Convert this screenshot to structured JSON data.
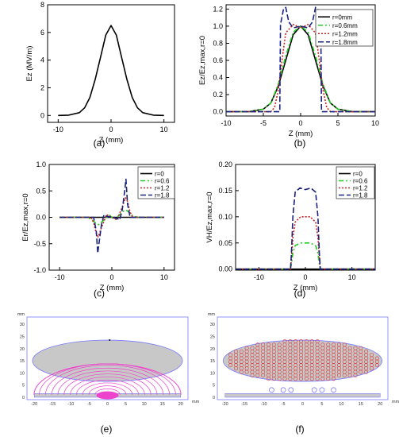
{
  "chart_data": [
    {
      "panel": "(a)",
      "type": "line",
      "xlabel": "Z (mm)",
      "ylabel": "Ez (MV/m)",
      "xlim": [
        -12,
        12
      ],
      "ylim": [
        -0.5,
        8
      ],
      "xticks": [
        -10,
        0,
        10
      ],
      "yticks": [
        0,
        2,
        4,
        6,
        8
      ],
      "grid": false,
      "series": [
        {
          "color": "#000000",
          "dash": "solid",
          "x": [
            -10,
            -8,
            -6,
            -5,
            -4,
            -3,
            -2,
            -1,
            0,
            1,
            2,
            3,
            4,
            5,
            6,
            8,
            10
          ],
          "y": [
            0,
            0.02,
            0.2,
            0.55,
            1.3,
            2.6,
            4.2,
            5.8,
            6.5,
            5.8,
            4.2,
            2.6,
            1.3,
            0.55,
            0.2,
            0.02,
            0
          ]
        }
      ]
    },
    {
      "panel": "(b)",
      "type": "line",
      "xlabel": "Z (mm)",
      "ylabel": "Ez/Ez,max,r=0",
      "xlim": [
        -10,
        10
      ],
      "ylim": [
        -0.05,
        1.25
      ],
      "xticks": [
        -10,
        -5,
        0,
        5,
        10
      ],
      "yticks": [
        0.0,
        0.2,
        0.4,
        0.6,
        0.8,
        1.0,
        1.2
      ],
      "grid": false,
      "legend": "top-right",
      "series": [
        {
          "name": "r=0mm",
          "color": "#000000",
          "dash": "solid",
          "x": [
            -10,
            -7,
            -5,
            -4,
            -3,
            -2,
            -1,
            0,
            1,
            2,
            3,
            4,
            5,
            7,
            10
          ],
          "y": [
            0,
            0,
            0.03,
            0.1,
            0.3,
            0.6,
            0.9,
            1.0,
            0.9,
            0.6,
            0.3,
            0.1,
            0.03,
            0,
            0
          ]
        },
        {
          "name": "r=0.6mm",
          "color": "#22cc22",
          "dash": "6,3,2,3",
          "x": [
            -10,
            -7,
            -5,
            -4,
            -3,
            -2,
            -1,
            0,
            1,
            2,
            3,
            4,
            5,
            7,
            10
          ],
          "y": [
            0,
            0,
            0.03,
            0.1,
            0.32,
            0.65,
            0.93,
            1.0,
            0.93,
            0.65,
            0.32,
            0.1,
            0.03,
            0,
            0
          ]
        },
        {
          "name": "r=1.2mm",
          "color": "#cc2222",
          "dash": "2,2",
          "x": [
            -10,
            -4,
            -3.5,
            -3,
            -2.5,
            -2,
            -1,
            0,
            1,
            2,
            2.5,
            3,
            3.5,
            4,
            10
          ],
          "y": [
            0,
            0,
            0.05,
            0.25,
            0.6,
            0.92,
            1.02,
            0.98,
            1.02,
            0.92,
            0.6,
            0.25,
            0.05,
            0,
            0
          ]
        },
        {
          "name": "r=1.8mm",
          "color": "#1a237e",
          "dash": "7,3",
          "x": [
            -10,
            -2.8,
            -2.7,
            -2.3,
            -2.0,
            -1.6,
            -1,
            0,
            1,
            1.6,
            2.0,
            2.3,
            2.7,
            2.8,
            10
          ],
          "y": [
            0,
            0,
            1.02,
            1.2,
            1.22,
            1.05,
            0.98,
            1.0,
            0.98,
            1.05,
            1.22,
            1.2,
            1.02,
            0,
            0
          ]
        }
      ]
    },
    {
      "panel": "(c)",
      "type": "line",
      "xlabel": "Z (mm)",
      "ylabel": "Er/Ez,max,r=0",
      "xlim": [
        -12,
        12
      ],
      "ylim": [
        -1.0,
        1.0
      ],
      "xticks": [
        -10,
        0,
        10
      ],
      "yticks": [
        -1.0,
        -0.5,
        0.0,
        0.5,
        1.0
      ],
      "grid": false,
      "legend": "top-right",
      "series": [
        {
          "name": "r=0",
          "color": "#000000",
          "dash": "solid",
          "x": [
            -10,
            -4,
            -3,
            -2,
            -1,
            0,
            1,
            2,
            3,
            4,
            10
          ],
          "y": [
            0,
            0,
            0,
            0,
            0,
            0,
            0,
            0,
            0,
            0,
            0
          ]
        },
        {
          "name": "r=0.6",
          "color": "#22cc22",
          "dash": "6,3,2,3",
          "x": [
            -10,
            -5,
            -4,
            -3,
            -2.5,
            -1.5,
            -0.5,
            0,
            0.5,
            1.5,
            2.5,
            3,
            4,
            5,
            10
          ],
          "y": [
            0,
            0,
            -0.03,
            -0.12,
            -0.14,
            -0.05,
            0.04,
            0,
            -0.04,
            0.05,
            0.14,
            0.12,
            0.03,
            0,
            0
          ]
        },
        {
          "name": "r=1.2",
          "color": "#cc2222",
          "dash": "2,2",
          "x": [
            -10,
            -4,
            -3.5,
            -3,
            -2.6,
            -2,
            -1,
            0,
            1,
            2,
            2.6,
            3,
            3.5,
            4,
            10
          ],
          "y": [
            0,
            0,
            -0.1,
            -0.3,
            -0.37,
            -0.2,
            0.05,
            0,
            -0.05,
            0.2,
            0.37,
            0.3,
            0.1,
            0,
            0
          ]
        },
        {
          "name": "r=1.8",
          "color": "#1a237e",
          "dash": "7,3",
          "x": [
            -10,
            -3.5,
            -3,
            -2.7,
            -2.4,
            -2.0,
            -1.5,
            -1,
            0,
            1,
            1.5,
            2.0,
            2.4,
            2.7,
            3,
            3.5,
            10
          ],
          "y": [
            0,
            0,
            -0.25,
            -0.68,
            -0.45,
            -0.15,
            0.05,
            0.02,
            0,
            -0.02,
            -0.05,
            0.15,
            0.45,
            0.72,
            0.25,
            0,
            0
          ]
        }
      ]
    },
    {
      "panel": "(d)",
      "type": "line",
      "xlabel": "Z (mm)",
      "ylabel": "VH/Ez,max,r=0",
      "xlim": [
        -15,
        15
      ],
      "ylim": [
        -0.002,
        0.2
      ],
      "xticks": [
        -10,
        0,
        10
      ],
      "yticks": [
        0.0,
        0.05,
        0.1,
        0.15,
        0.2
      ],
      "grid": false,
      "legend": "top-right",
      "series": [
        {
          "name": "r=0",
          "color": "#000000",
          "dash": "solid",
          "x": [
            -15,
            15
          ],
          "y": [
            0,
            0
          ]
        },
        {
          "name": "r=0.6",
          "color": "#22cc22",
          "dash": "6,3,2,3",
          "x": [
            -15,
            -3.2,
            -3.0,
            -2.7,
            -2.2,
            -1.0,
            0,
            1.0,
            2.2,
            2.7,
            3.0,
            3.2,
            15
          ],
          "y": [
            0,
            0,
            0.01,
            0.03,
            0.045,
            0.05,
            0.05,
            0.05,
            0.045,
            0.03,
            0.01,
            0,
            0
          ]
        },
        {
          "name": "r=1.2",
          "color": "#cc2222",
          "dash": "2,2",
          "x": [
            -15,
            -3.2,
            -3.0,
            -2.7,
            -2.2,
            -1.0,
            0,
            1.0,
            2.2,
            2.7,
            3.0,
            3.2,
            15
          ],
          "y": [
            0,
            0,
            0.02,
            0.06,
            0.09,
            0.1,
            0.1,
            0.1,
            0.09,
            0.06,
            0.02,
            0,
            0
          ]
        },
        {
          "name": "r=1.8",
          "color": "#1a237e",
          "dash": "7,3",
          "x": [
            -15,
            -3.2,
            -3.0,
            -2.7,
            -2.2,
            -1.2,
            0,
            1.2,
            2.2,
            2.7,
            3.0,
            3.2,
            15
          ],
          "y": [
            0,
            0,
            0.03,
            0.1,
            0.147,
            0.155,
            0.152,
            0.155,
            0.147,
            0.1,
            0.03,
            0,
            0
          ]
        }
      ]
    },
    {
      "panel": "(e)",
      "type": "diagram",
      "xlabel": "mm",
      "ylabel": "mm",
      "xlim": [
        -22,
        22
      ],
      "ylim": [
        -1,
        33
      ],
      "xticks": [
        -20,
        -15,
        -10,
        -5,
        0,
        5,
        10,
        15,
        20
      ],
      "yticks": [
        0,
        5,
        10,
        15,
        20,
        25,
        30
      ],
      "ellipse_color": "#c8c8c8",
      "line_color": "#ee44cc"
    },
    {
      "panel": "(f)",
      "type": "diagram",
      "xlabel": "mm",
      "ylabel": "mm",
      "xlim": [
        -22,
        22
      ],
      "ylim": [
        -1,
        33
      ],
      "xticks": [
        -20,
        -15,
        -10,
        -5,
        0,
        5,
        10,
        15,
        20
      ],
      "yticks": [
        0,
        5,
        10,
        15,
        20,
        25,
        30
      ],
      "ellipse_color": "#c8c8c8",
      "marker_color": "#dd3333"
    }
  ],
  "legend_title_hidden": ""
}
